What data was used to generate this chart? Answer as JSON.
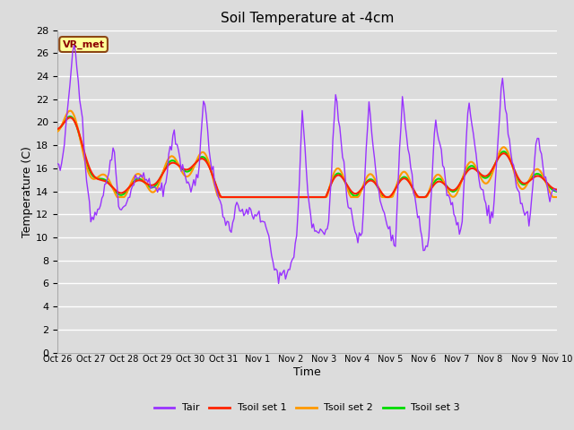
{
  "title": "Soil Temperature at -4cm",
  "xlabel": "Time",
  "ylabel": "Temperature (C)",
  "ylim": [
    0,
    28
  ],
  "yticks": [
    0,
    2,
    4,
    6,
    8,
    10,
    12,
    14,
    16,
    18,
    20,
    22,
    24,
    26,
    28
  ],
  "bg_color": "#dcdcdc",
  "plot_bg_color": "#dcdcdc",
  "grid_color": "white",
  "tair_color": "#9933ff",
  "tsoil1_color": "#ff2200",
  "tsoil2_color": "#ff9900",
  "tsoil3_color": "#00dd00",
  "annotation_text": "VR_met",
  "annotation_bg": "#ffff99",
  "annotation_border": "#8b4513",
  "legend_colors": [
    "#9933ff",
    "#ff2200",
    "#ff9900",
    "#00dd00"
  ],
  "legend_labels": [
    "Tair",
    "Tsoil set 1",
    "Tsoil set 2",
    "Tsoil set 3"
  ],
  "xtick_labels": [
    "Oct 26",
    "Oct 27",
    "Oct 28",
    "Oct 29",
    "Oct 30",
    "Oct 31",
    "Nov 1",
    "Nov 2",
    "Nov 3",
    "Nov 4",
    "Nov 5",
    "Nov 6",
    "Nov 7",
    "Nov 8",
    "Nov 9",
    "Nov 10"
  ],
  "n_points": 360,
  "days": 15
}
